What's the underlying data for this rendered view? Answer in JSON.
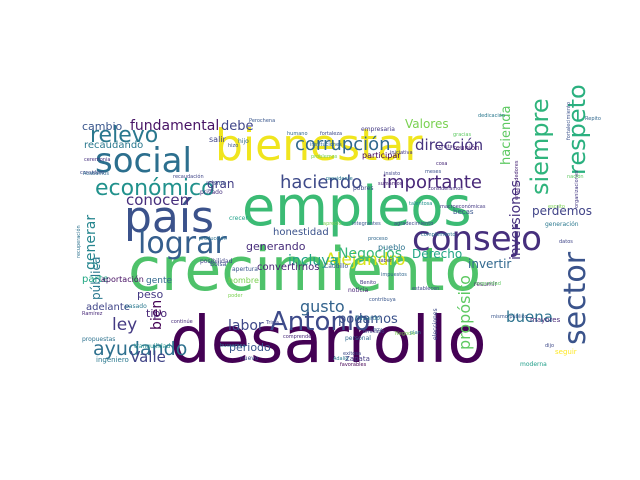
{
  "words": [
    {
      "text": "crecimiento",
      "color": "#4ec26a"
    },
    {
      "text": "desarrollo",
      "color": "#440154"
    },
    {
      "text": "bienestar",
      "color": "#f0e51e"
    },
    {
      "text": "empleos",
      "color": "#3bbb74"
    },
    {
      "text": "país",
      "color": "#3b528b"
    },
    {
      "text": "social",
      "color": "#2c6f8e"
    },
    {
      "text": "consejo",
      "color": "#462f7d"
    },
    {
      "text": "lograr",
      "color": "#355f8d"
    },
    {
      "text": "Antonio",
      "color": "#3e4b8a"
    },
    {
      "text": "sector",
      "color": "#3a538b"
    },
    {
      "text": "económico",
      "color": "#21918c"
    },
    {
      "text": "relevo",
      "color": "#2a788e"
    },
    {
      "text": "respeto",
      "color": "#2ab07f"
    },
    {
      "text": "siempre",
      "color": "#2fb47c"
    },
    {
      "text": "haciendo",
      "color": "#3e4a89"
    },
    {
      "text": "importante",
      "color": "#482878"
    },
    {
      "text": "corrupción",
      "color": "#31688e"
    },
    {
      "text": "dirección",
      "color": "#46337e"
    },
    {
      "text": "Alejandro",
      "color": "#dae319"
    },
    {
      "text": "incluya",
      "color": "#20a486"
    },
    {
      "text": "ayudando",
      "color": "#2d708e"
    },
    {
      "text": "Valle",
      "color": "#414487"
    },
    {
      "text": "ley",
      "color": "#443a83"
    },
    {
      "text": "gusto",
      "color": "#33638d"
    },
    {
      "text": "propósito",
      "color": "#5ec962"
    },
    {
      "text": "buena",
      "color": "#2c728e"
    },
    {
      "text": "generar",
      "color": "#25858e"
    },
    {
      "text": "conocen",
      "color": "#472f7d"
    },
    {
      "text": "labor",
      "color": "#3f4889"
    },
    {
      "text": "Negocios",
      "color": "#35b779"
    },
    {
      "text": "Derecho",
      "color": "#21a585"
    },
    {
      "text": "fundamental",
      "color": "#471365"
    },
    {
      "text": "debe",
      "color": "#404688"
    },
    {
      "text": "Valores",
      "color": "#7ad151"
    },
    {
      "text": "cambio",
      "color": "#39568c"
    },
    {
      "text": "bien",
      "color": "#440154"
    },
    {
      "text": "podamos",
      "color": "#3b528b"
    },
    {
      "text": "invertir",
      "color": "#31688e"
    },
    {
      "text": "inversiones",
      "color": "#46307e"
    },
    {
      "text": "gran",
      "color": "#433e85"
    },
    {
      "text": "hacienda",
      "color": "#5ec962"
    },
    {
      "text": "perdemos",
      "color": "#404387"
    },
    {
      "text": "pública",
      "color": "#2a788e"
    },
    {
      "text": "periodo",
      "color": "#39568c"
    },
    {
      "text": "tipo",
      "color": "#482677"
    },
    {
      "text": "generando",
      "color": "#472c7a"
    },
    {
      "text": "honestidad",
      "color": "#3b528b"
    },
    {
      "text": "recaudando",
      "color": "#2a788e"
    },
    {
      "text": "convertirnos",
      "color": "#482475"
    },
    {
      "text": "peso",
      "color": "#443983"
    },
    {
      "text": "parte",
      "color": "#22a884"
    },
    {
      "text": "reunión",
      "color": "#481f70"
    },
    {
      "text": "hombre",
      "color": "#7ad151"
    },
    {
      "text": "adelante",
      "color": "#404588"
    },
    {
      "text": "nuevo",
      "color": "#3b528b"
    },
    {
      "text": "gente",
      "color": "#31688e"
    },
    {
      "text": "ingeniero",
      "color": "#2a788e"
    },
    {
      "text": "seguir",
      "color": "#fde725"
    },
    {
      "text": "moderna",
      "color": "#1f9e89"
    },
    {
      "text": "mayores",
      "color": "#482878"
    },
    {
      "text": "elecciones",
      "color": "#3e4989"
    },
    {
      "text": "pueblo",
      "color": "#2c728e"
    },
    {
      "text": "participar",
      "color": "#440154"
    },
    {
      "text": "empresaria",
      "color": "#443a83"
    },
    {
      "text": "humano",
      "color": "#31688e"
    },
    {
      "text": "fortaleza",
      "color": "#3e4989"
    },
    {
      "text": "dedicación",
      "color": "#2a788e"
    },
    {
      "text": "aportación",
      "color": "#471063"
    },
    {
      "text": "salir",
      "color": "#404588"
    },
    {
      "text": "hijo",
      "color": "#31688e"
    },
    {
      "text": "mismo",
      "color": "#3b528b"
    },
    {
      "text": "privado",
      "color": "#46307e"
    },
    {
      "text": "propuestas",
      "color": "#2c728e"
    },
    {
      "text": "tranquilidad",
      "color": "#21918c"
    },
    {
      "text": "pasado",
      "color": "#2a788e"
    },
    {
      "text": "crecer",
      "color": "#1fa088"
    },
    {
      "text": "Caudillo",
      "color": "#39568c"
    },
    {
      "text": "resumir",
      "color": "#481f70"
    },
    {
      "text": "pobres",
      "color": "#404688"
    },
    {
      "text": "becas",
      "color": "#39568c"
    },
    {
      "text": "Zapata",
      "color": "#443983"
    },
    {
      "text": "personal",
      "color": "#31688e"
    },
    {
      "text": "noticia",
      "color": "#482475"
    },
    {
      "text": "Eduardo",
      "color": "#2a788e"
    },
    {
      "text": "Bolsa",
      "color": "#3b528b"
    },
    {
      "text": "posibilidad",
      "color": "#404588"
    },
    {
      "text": "recuperación",
      "color": "#2c728e"
    },
    {
      "text": "ceremonia",
      "color": "#46307e"
    },
    {
      "text": "considero",
      "color": "#3e4989"
    },
    {
      "text": "Ramírez",
      "color": "#482878"
    },
    {
      "text": "Acabamos",
      "color": "#31688e"
    },
    {
      "text": "apertura",
      "color": "#39568c"
    },
    {
      "text": "gracias",
      "color": "#5ec962"
    },
    {
      "text": "consta",
      "color": "#472c7a"
    },
    {
      "text": "establecen",
      "color": "#3e4989"
    },
    {
      "text": "datos",
      "color": "#404588"
    },
    {
      "text": "generación",
      "color": "#2a788e"
    },
    {
      "text": "escrito",
      "color": "#7ad151"
    },
    {
      "text": "hoy",
      "color": "#39568c"
    },
    {
      "text": "macroeconómicas",
      "color": "#443983"
    },
    {
      "text": "Repito",
      "color": "#31688e"
    },
    {
      "text": "sumamos",
      "color": "#482475"
    },
    {
      "text": "hizo",
      "color": "#3b528b"
    },
    {
      "text": "consideramos",
      "color": "#46307e"
    },
    {
      "text": "producción",
      "color": "#2c728e"
    },
    {
      "text": "Tricia",
      "color": "#404588"
    },
    {
      "text": "contribuya",
      "color": "#39568c"
    },
    {
      "text": "saber",
      "color": "#443983"
    },
    {
      "text": "comprende",
      "color": "#482878"
    },
    {
      "text": "poder",
      "color": "#7ad151"
    },
    {
      "text": "Adalid",
      "color": "#2a788e"
    },
    {
      "text": "exitosa",
      "color": "#3e4989"
    },
    {
      "text": "favorables",
      "color": "#440154"
    },
    {
      "text": "continúe",
      "color": "#472c7a"
    },
    {
      "text": "impuestos",
      "color": "#31688e"
    },
    {
      "text": "recaudación",
      "color": "#404588"
    },
    {
      "text": "Perochena",
      "color": "#39568c"
    },
    {
      "text": "aprecio",
      "color": "#7ad151"
    },
    {
      "text": "buscamos",
      "color": "#2c728e"
    },
    {
      "text": "fortalecimiento",
      "color": "#3b528b"
    },
    {
      "text": "organizaciones",
      "color": "#443983"
    },
    {
      "text": "problemas",
      "color": "#7ad151"
    },
    {
      "text": "talentosa",
      "color": "#21918c"
    },
    {
      "text": "nación",
      "color": "#5ec962"
    },
    {
      "text": "emprendedores",
      "color": "#482475"
    },
    {
      "text": "Emiliano",
      "color": "#404588"
    },
    {
      "text": "mismo público",
      "color": "#39568c"
    },
    {
      "text": "agradecimiento",
      "color": "#3e4989"
    },
    {
      "text": "presidente",
      "color": "#2a788e"
    },
    {
      "text": "instituciones",
      "color": "#31688e"
    },
    {
      "text": "iniciativa",
      "color": "#443983"
    },
    {
      "text": "seguridad",
      "color": "#5ec962"
    },
    {
      "text": "complemento",
      "color": "#2c728e"
    },
    {
      "text": "cosa",
      "color": "#482878"
    },
    {
      "text": "meses",
      "color": "#3b528b"
    },
    {
      "text": "insisto",
      "color": "#404588"
    },
    {
      "text": "integrantes",
      "color": "#39568c"
    },
    {
      "text": "proceso",
      "color": "#31688e"
    },
    {
      "text": "Benito",
      "color": "#443983"
    },
    {
      "text": "plan",
      "color": "#2a788e"
    },
    {
      "text": "dijo",
      "color": "#3e4989"
    },
    {
      "text": "Negocio",
      "color": "#7ad151"
    }
  ]
}
